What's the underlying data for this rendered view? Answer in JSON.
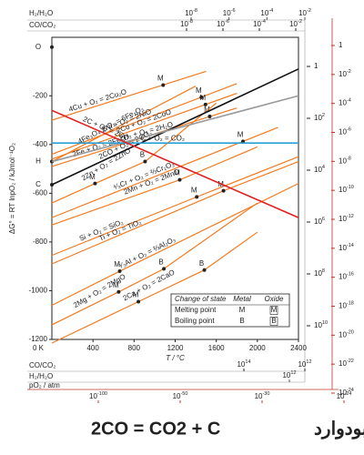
{
  "chart_data": {
    "type": "line",
    "y_label": "ΔG° = RT lnpO₂ / kJmol⁻¹O₂",
    "x_label": "T / °C",
    "origin_label": "0 K",
    "xlim": [
      0,
      2400
    ],
    "xticks": [
      400,
      800,
      1200,
      1600,
      2000,
      2400
    ],
    "ylim": [
      -1200,
      40
    ],
    "yticks": [
      -200,
      -400,
      -600,
      -800,
      -1000,
      -1200
    ],
    "left_points": [
      {
        "label": "O",
        "value": 0
      },
      {
        "label": "H",
        "value": -470
      },
      {
        "label": "C",
        "value": -565
      }
    ],
    "series": [
      {
        "name": "4Cu + O₂ = 2Cu₂O",
        "color": "#f47b20",
        "x": [
          0,
          1500
        ],
        "values": [
          -300,
          -100
        ],
        "markers": [
          {
            "x": 1083,
            "y": -156,
            "label": "M"
          }
        ]
      },
      {
        "name": "4Fe₃O₄ + O₂ = 6Fe₂O₃",
        "color": "#f47b20",
        "x": [
          0,
          1400
        ],
        "values": [
          -470,
          -160
        ],
        "markers": []
      },
      {
        "name": "2Ni + O₂ = 2NiO",
        "color": "#f47b20",
        "x": [
          0,
          1800
        ],
        "values": [
          -440,
          -150
        ],
        "markers": [
          {
            "x": 1455,
            "y": -206,
            "label": "M"
          }
        ]
      },
      {
        "name": "2Co + O₂ = 2CoO",
        "color": "#f47b20",
        "x": [
          0,
          1800
        ],
        "values": [
          -460,
          -190
        ],
        "markers": [
          {
            "x": 1495,
            "y": -236,
            "label": "M"
          }
        ]
      },
      {
        "name": "2Fe + O₂ = 2FeO",
        "color": "#f47b20",
        "x": [
          0,
          1800
        ],
        "values": [
          -490,
          -250
        ],
        "markers": [
          {
            "x": 1536,
            "y": -285,
            "label": "M"
          }
        ]
      },
      {
        "name": "2Zn + O₂ = 2ZnO",
        "color": "#f47b20",
        "x": [
          0,
          420,
          907,
          1600
        ],
        "values": [
          -640,
          -560,
          -470,
          -230
        ],
        "markers": [
          {
            "x": 420,
            "y": -560,
            "label": "M"
          },
          {
            "x": 907,
            "y": -470,
            "label": "B"
          }
        ]
      },
      {
        "name": "⁴⁄₃Cr + O₂ = ⅔Cr₂O₃",
        "color": "#f47b20",
        "x": [
          0,
          2200
        ],
        "values": [
          -700,
          -330
        ],
        "markers": [
          {
            "x": 1860,
            "y": -387,
            "label": "M"
          }
        ]
      },
      {
        "name": "2Mn + O₂ = 2MnO",
        "color": "#f47b20",
        "x": [
          0,
          1244,
          2000
        ],
        "values": [
          -730,
          -545,
          -410
        ],
        "markers": [
          {
            "x": 1244,
            "y": -545,
            "label": "M"
          }
        ]
      },
      {
        "name": "Si + O₂ = SiO₂",
        "color": "#f47b20",
        "x": [
          0,
          1410,
          2400
        ],
        "values": [
          -855,
          -615,
          -450
        ],
        "markers": [
          {
            "x": 1410,
            "y": -615,
            "label": "M"
          }
        ]
      },
      {
        "name": "Ti + O₂ = TiO₂",
        "color": "#f47b20",
        "x": [
          0,
          1670,
          2400
        ],
        "values": [
          -890,
          -590,
          -470
        ],
        "markers": [
          {
            "x": 1670,
            "y": -590,
            "label": "M"
          }
        ]
      },
      {
        "name": "⁴⁄₃Al + O₂ = ⅔Al₂O₃",
        "color": "#f47b20",
        "x": [
          0,
          660,
          2400
        ],
        "values": [
          -1060,
          -920,
          -560
        ],
        "markers": [
          {
            "x": 660,
            "y": -920,
            "label": "M"
          }
        ]
      },
      {
        "name": "2Ca + O₂ = 2CaO",
        "color": "#f47b20",
        "x": [
          0,
          842,
          1484,
          2000
        ],
        "values": [
          -1215,
          -1045,
          -915,
          -760
        ],
        "markers": [
          {
            "x": 842,
            "y": -1045,
            "label": "M"
          },
          {
            "x": 1484,
            "y": -915,
            "label": "B"
          }
        ]
      },
      {
        "name": "2Mg + O₂ = 2MgO",
        "color": "#f47b20",
        "x": [
          0,
          650,
          1090,
          2000
        ],
        "values": [
          -1140,
          -1005,
          -910,
          -640
        ],
        "markers": [
          {
            "x": 650,
            "y": -1005,
            "label": "M"
          },
          {
            "x": 1090,
            "y": -910,
            "label": "B"
          }
        ]
      },
      {
        "name": "2CO + O₂ = 2CO₂",
        "color": "#111111",
        "x": [
          0,
          2400
        ],
        "values": [
          -565,
          -90
        ],
        "markers": []
      },
      {
        "name": "2H₂ + O₂ = 2H₂O",
        "color": "#999999",
        "x": [
          0,
          2400
        ],
        "values": [
          -470,
          -200
        ],
        "markers": []
      },
      {
        "name": "C + O₂ = CO₂",
        "color": "#2a9fd6",
        "x": [
          0,
          2400
        ],
        "values": [
          -394,
          -394
        ],
        "markers": []
      },
      {
        "name": "2C + O₂ = 2CO",
        "color": "#e02020",
        "x": [
          0,
          2400
        ],
        "values": [
          -260,
          -700
        ],
        "markers": []
      }
    ],
    "legend_table": {
      "header": [
        "Change of state",
        "Metal",
        "Oxide"
      ],
      "rows": [
        [
          "Melting point",
          "M",
          "M"
        ],
        [
          "Boiling point",
          "B",
          "B"
        ]
      ]
    },
    "scales": {
      "h2_h2o_top": {
        "title": "H₂/H₂O",
        "color": "#555555",
        "ticks": [
          {
            "base": "10",
            "exp": "-8"
          },
          {
            "base": "10",
            "exp": "-6"
          },
          {
            "base": "10",
            "exp": "-4"
          },
          {
            "base": "10",
            "exp": "-2"
          }
        ]
      },
      "co_co2_top": {
        "title": "CO/CO₂",
        "color": "#222222",
        "ticks": [
          {
            "base": "10",
            "exp": "-8"
          },
          {
            "base": "10",
            "exp": "-6"
          },
          {
            "base": "10",
            "exp": "-4"
          },
          {
            "base": "10",
            "exp": "-2"
          }
        ]
      },
      "co_co2_right": {
        "color": "#222222",
        "ticks": [
          {
            "base": "1"
          },
          {
            "base": "10",
            "exp": "2"
          },
          {
            "base": "10",
            "exp": "4"
          },
          {
            "base": "10",
            "exp": "6"
          },
          {
            "base": "10",
            "exp": "8"
          },
          {
            "base": "10",
            "exp": "10"
          }
        ]
      },
      "po2_right": {
        "color": "#c0392b",
        "ticks": [
          {
            "base": "1"
          },
          {
            "base": "10",
            "exp": "-2"
          },
          {
            "base": "10",
            "exp": "-4"
          },
          {
            "base": "10",
            "exp": "-6"
          },
          {
            "base": "10",
            "exp": "-8"
          },
          {
            "base": "10",
            "exp": "-10"
          },
          {
            "base": "10",
            "exp": "-12"
          },
          {
            "base": "10",
            "exp": "-14"
          },
          {
            "base": "10",
            "exp": "-16"
          },
          {
            "base": "10",
            "exp": "-18"
          },
          {
            "base": "10",
            "exp": "-20"
          },
          {
            "base": "10",
            "exp": "-22"
          },
          {
            "base": "10",
            "exp": "-24"
          }
        ]
      },
      "co_co2_bottom": {
        "title": "CO/CO₂",
        "color": "#222222",
        "ticks": [
          {
            "base": "10",
            "exp": "14"
          },
          {
            "base": "10",
            "exp": "12"
          }
        ]
      },
      "h2_h2o_bottom": {
        "title": "H₂/H₂O",
        "color": "#555555",
        "ticks": [
          {
            "base": "10",
            "exp": "12"
          }
        ]
      },
      "po2_bottom": {
        "title": "pO₂ / atm",
        "color": "#c0392b",
        "ticks": [
          {
            "base": "10",
            "exp": "-100"
          },
          {
            "base": "10",
            "exp": "-50"
          },
          {
            "base": "10",
            "exp": "-30"
          },
          {
            "base": "10",
            "exp": "-24"
          }
        ]
      }
    }
  },
  "caption": {
    "equation": "2CO = CO2 + C",
    "persian": "واکنش بودوارد"
  }
}
